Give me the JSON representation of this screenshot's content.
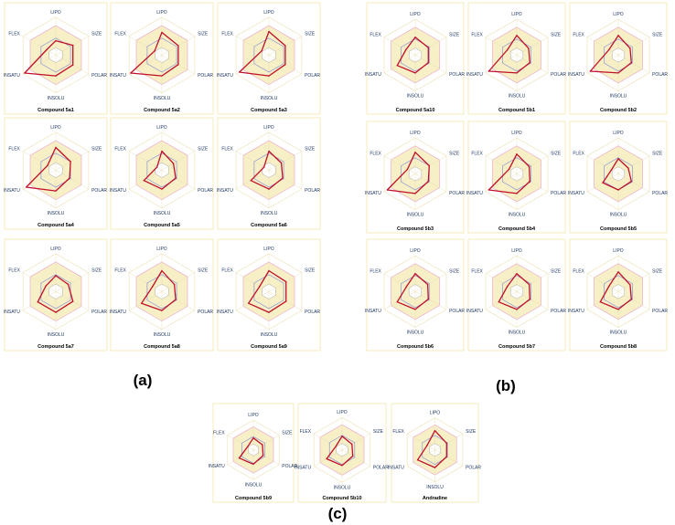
{
  "axes": [
    "LIPO",
    "SIZE",
    "POLAR",
    "INSOLU",
    "INSATU",
    "FLEX"
  ],
  "colors": {
    "frame": "#f4e7a8",
    "optimal_fill": "#f7efc6",
    "optimal_stroke": "#e8a0c8",
    "outer_hexagon": "#ece1b4",
    "inner_hexagon": "#a9a9a9",
    "compound": "#c0102a",
    "reference": "#7a86d8"
  },
  "panel_labels": [
    "(a)",
    "(b)",
    "(c)"
  ],
  "chart_data": [
    {
      "type": "radar",
      "title": "Compound 5a1",
      "values": [
        0.38,
        0.52,
        0.52,
        0.55,
        0.95,
        0.28
      ]
    },
    {
      "type": "radar",
      "title": "Compound 5a2",
      "values": [
        0.6,
        0.5,
        0.5,
        0.55,
        0.95,
        0.22
      ]
    },
    {
      "type": "radar",
      "title": "Compound 5a3",
      "values": [
        0.62,
        0.5,
        0.5,
        0.55,
        0.9,
        0.22
      ]
    },
    {
      "type": "radar",
      "title": "Compound 5a4",
      "values": [
        0.6,
        0.45,
        0.42,
        0.55,
        0.9,
        0.25
      ]
    },
    {
      "type": "radar",
      "title": "Compound 5a5",
      "values": [
        0.5,
        0.35,
        0.42,
        0.5,
        0.55,
        0.15
      ]
    },
    {
      "type": "radar",
      "title": "Compound 5a6",
      "values": [
        0.5,
        0.38,
        0.42,
        0.5,
        0.55,
        0.15
      ]
    },
    {
      "type": "radar",
      "title": "Compound 5a7",
      "values": [
        0.42,
        0.38,
        0.52,
        0.55,
        0.55,
        0.3
      ]
    },
    {
      "type": "radar",
      "title": "Compound 5a8",
      "values": [
        0.55,
        0.38,
        0.42,
        0.5,
        0.62,
        0.28
      ]
    },
    {
      "type": "radar",
      "title": "Compound 5a9",
      "values": [
        0.55,
        0.52,
        0.52,
        0.55,
        0.62,
        0.28
      ]
    },
    {
      "type": "radar",
      "title": "Compound 5a10",
      "values": [
        0.5,
        0.42,
        0.42,
        0.5,
        0.58,
        0.3
      ]
    },
    {
      "type": "radar",
      "title": "Compound 5b1",
      "values": [
        0.55,
        0.38,
        0.42,
        0.5,
        0.9,
        0.3
      ]
    },
    {
      "type": "radar",
      "title": "Compound 5b2",
      "values": [
        0.55,
        0.38,
        0.42,
        0.5,
        0.9,
        0.3
      ]
    },
    {
      "type": "radar",
      "title": "Compound 5b3",
      "values": [
        0.6,
        0.45,
        0.42,
        0.55,
        0.9,
        0.25
      ]
    },
    {
      "type": "radar",
      "title": "Compound 5b4",
      "values": [
        0.55,
        0.4,
        0.42,
        0.55,
        0.9,
        0.25
      ]
    },
    {
      "type": "radar",
      "title": "Compound 5b5",
      "values": [
        0.42,
        0.32,
        0.42,
        0.45,
        0.5,
        0.22
      ]
    },
    {
      "type": "radar",
      "title": "Compound 5b6",
      "values": [
        0.5,
        0.4,
        0.42,
        0.5,
        0.58,
        0.28
      ]
    },
    {
      "type": "radar",
      "title": "Compound 5b7",
      "values": [
        0.5,
        0.4,
        0.42,
        0.5,
        0.58,
        0.3
      ]
    },
    {
      "type": "radar",
      "title": "Compound 5b8",
      "values": [
        0.55,
        0.38,
        0.42,
        0.5,
        0.58,
        0.3
      ]
    },
    {
      "type": "radar",
      "title": "Compound 5b9",
      "values": [
        0.4,
        0.35,
        0.38,
        0.48,
        0.55,
        0.22
      ]
    },
    {
      "type": "radar",
      "title": "Compound 5b10",
      "values": [
        0.42,
        0.35,
        0.38,
        0.48,
        0.55,
        0.22
      ]
    },
    {
      "type": "radar",
      "title": "Andradine",
      "values": [
        0.6,
        0.42,
        0.42,
        0.55,
        0.62,
        0.28
      ]
    }
  ]
}
